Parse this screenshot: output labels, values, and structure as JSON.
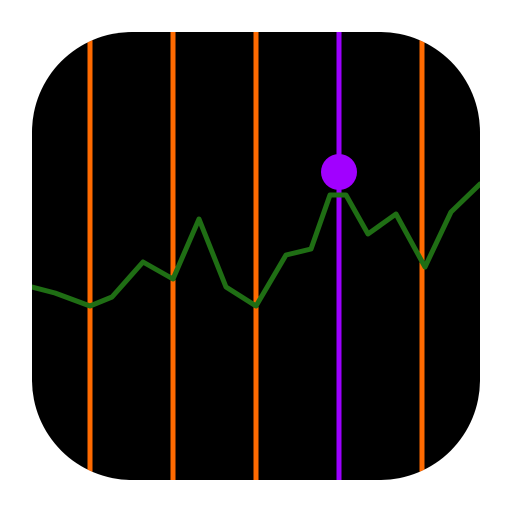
{
  "icon": {
    "background_color": "#000000",
    "marker_line_color": "#ff6a00",
    "highlight_line_color": "#9b00ff",
    "highlight_dot_color": "#a100ff",
    "trend_line_color": "#1f6e14"
  }
}
